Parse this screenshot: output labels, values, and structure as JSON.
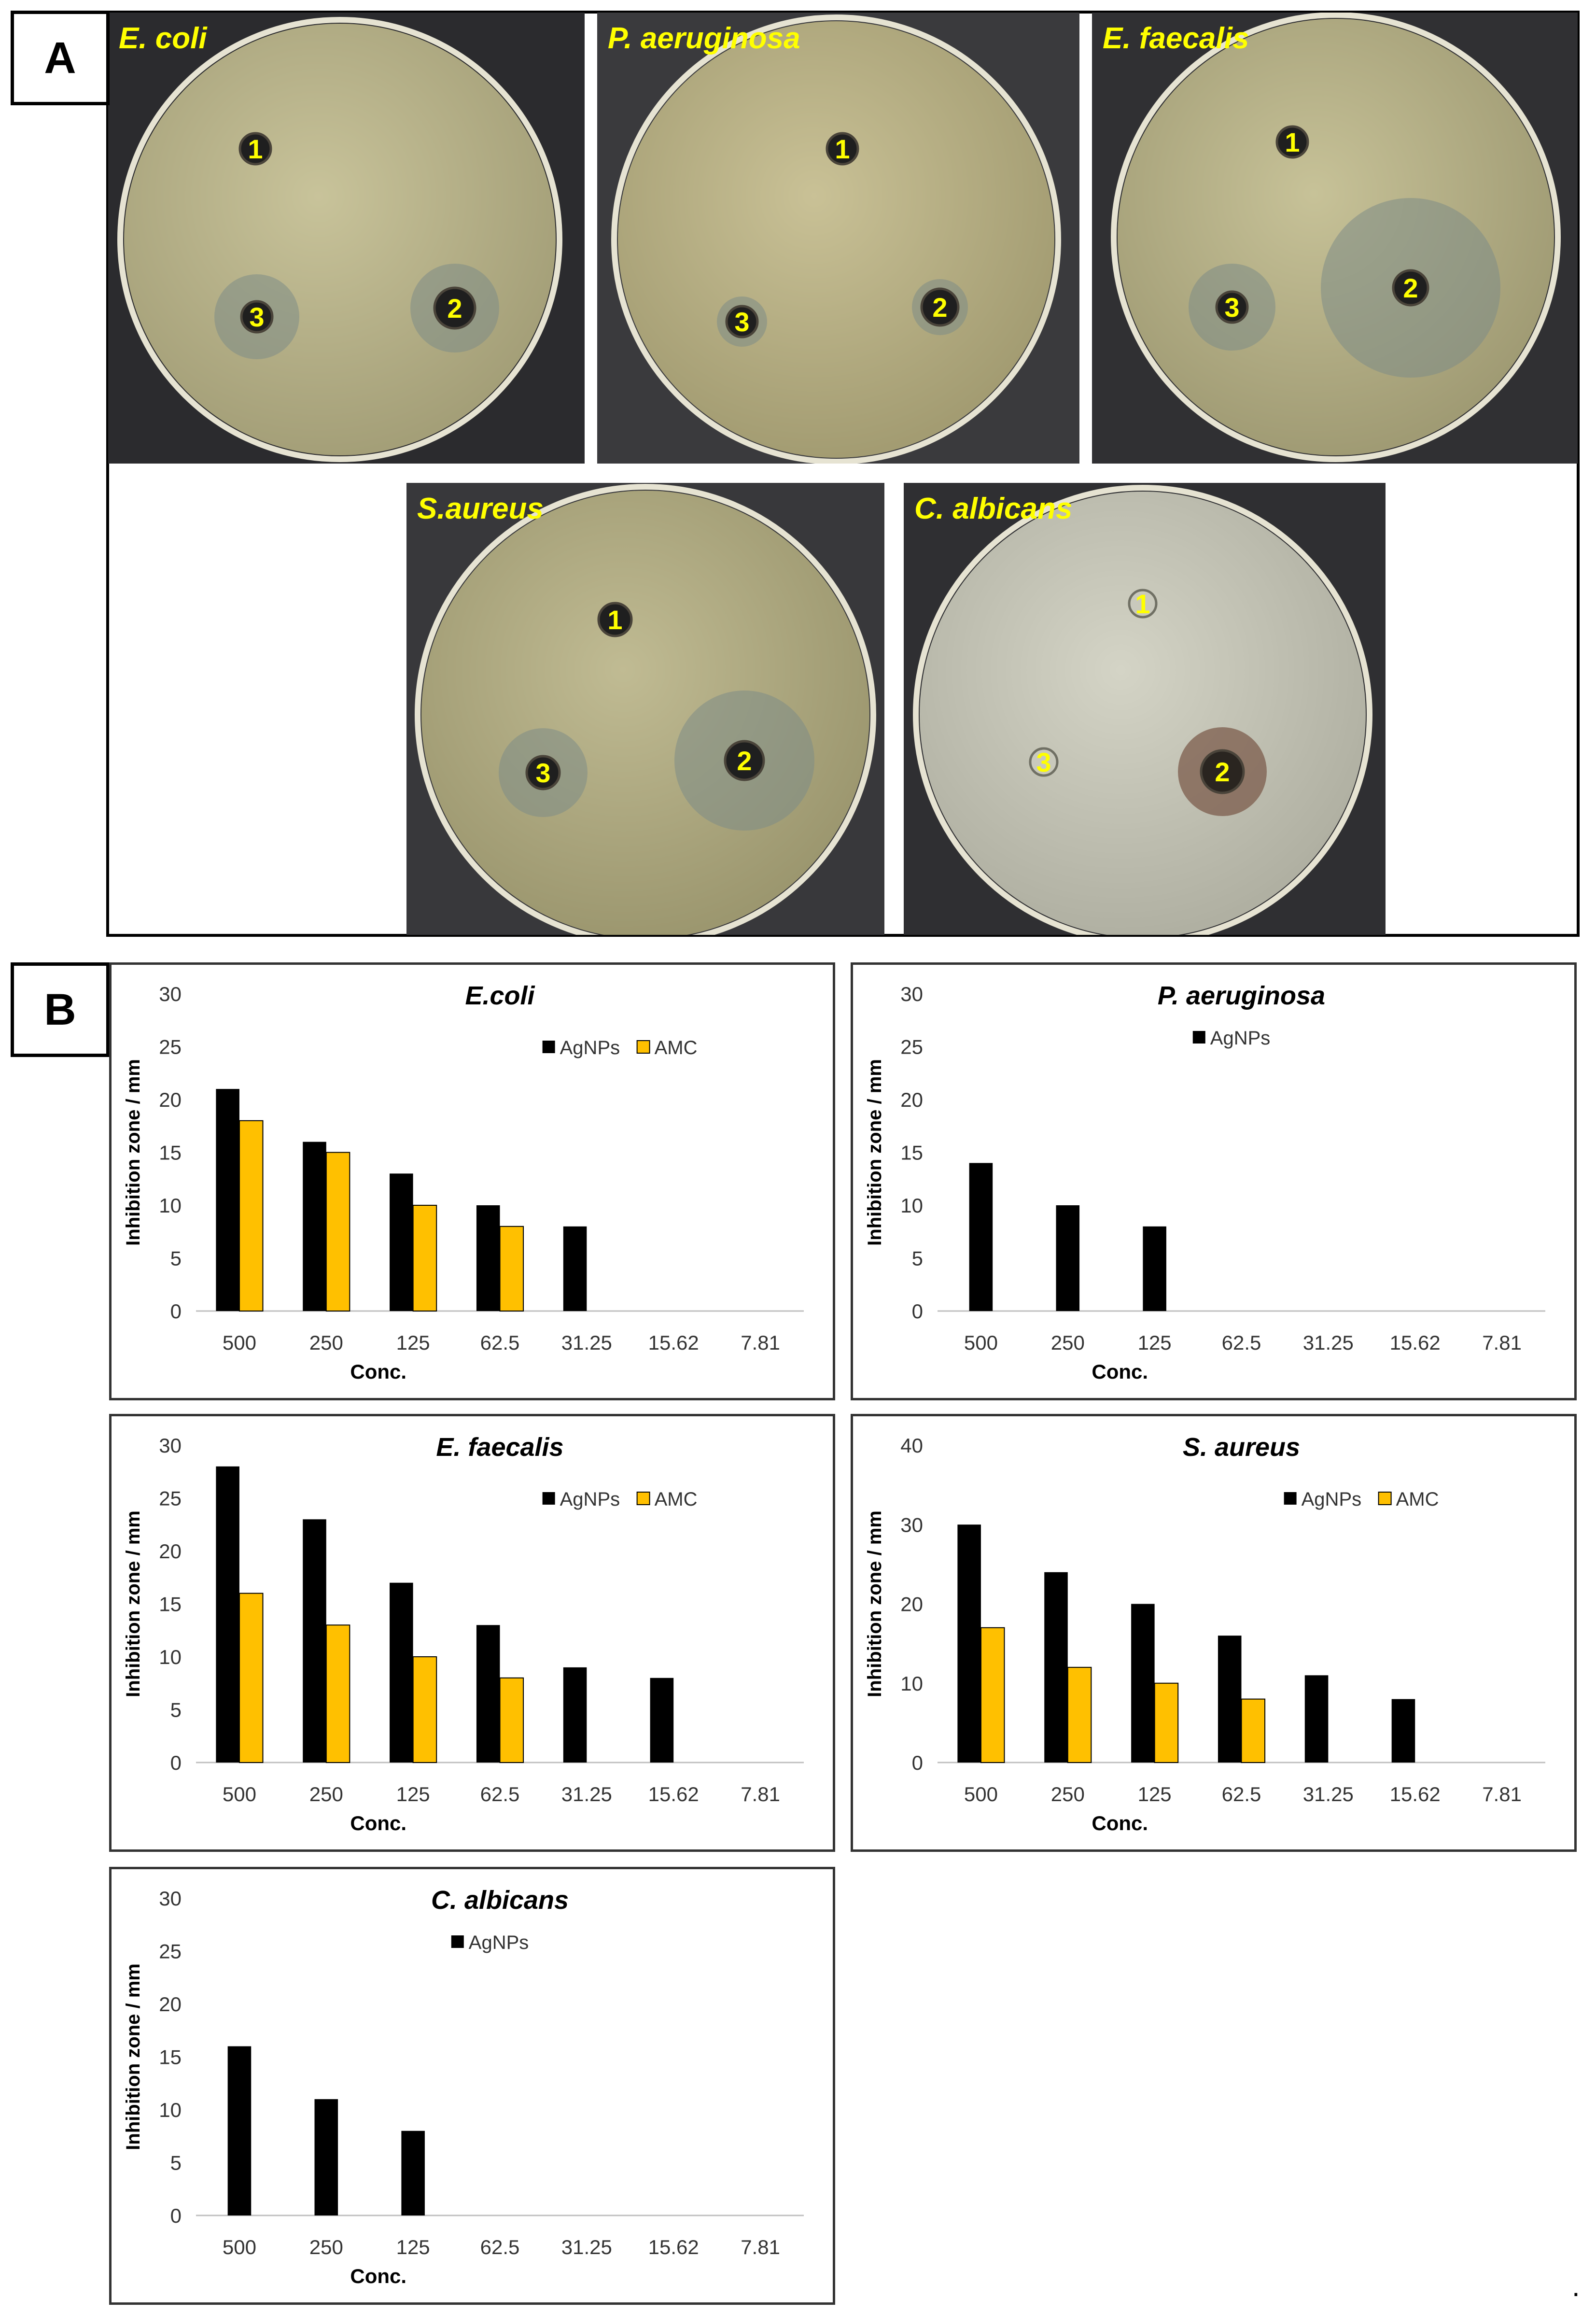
{
  "panel_a": {
    "label": "A",
    "plates": [
      {
        "organism": "E. coli",
        "well_labels": [
          "1",
          "2",
          "3"
        ],
        "background": "#2b2b2e",
        "agar": "#c8c39a",
        "agar_edge": "#a49f78"
      },
      {
        "organism": "P. aeruginosa",
        "well_labels": [
          "1",
          "2",
          "3"
        ],
        "background": "#3a3a3d",
        "agar": "#c9c196",
        "agar_edge": "#a39c72"
      },
      {
        "organism": "E. faecalis",
        "well_labels": [
          "1",
          "2",
          "3"
        ],
        "background": "#303033",
        "agar": "#c7c298",
        "agar_edge": "#a09b74"
      },
      {
        "organism": "S.aureus",
        "well_labels": [
          "1",
          "2",
          "3"
        ],
        "background": "#38383b",
        "agar": "#c0bb93",
        "agar_edge": "#9c976f"
      },
      {
        "organism": "C. albicans",
        "well_labels": [
          "1",
          "2",
          "3"
        ],
        "background": "#2f2f32",
        "agar": "#d4d4c6",
        "agar_edge": "#b0b0a2"
      }
    ]
  },
  "panel_b": {
    "label": "B"
  },
  "trailing_mark": ".",
  "chart_data": [
    {
      "type": "bar",
      "title": "E.coli",
      "xlabel": "Conc.",
      "ylabel": "Inhibition zone / mm",
      "categories": [
        "500",
        "250",
        "125",
        "62.5",
        "31.25",
        "15.62",
        "7.81"
      ],
      "ylim": [
        0,
        30
      ],
      "yticks": [
        0,
        5,
        10,
        15,
        20,
        25,
        30
      ],
      "legend_position": "top-right",
      "series": [
        {
          "name": "AgNPs",
          "color": "#000000",
          "values": [
            21,
            16,
            13,
            10,
            8,
            0,
            0
          ]
        },
        {
          "name": "AMC",
          "color": "#ffc000",
          "values": [
            18,
            15,
            10,
            8,
            0,
            0,
            0
          ]
        }
      ]
    },
    {
      "type": "bar",
      "title": "P. aeruginosa",
      "xlabel": "Conc.",
      "ylabel": "Inhibition zone / mm",
      "categories": [
        "500",
        "250",
        "125",
        "62.5",
        "31.25",
        "15.62",
        "7.81"
      ],
      "ylim": [
        0,
        30
      ],
      "yticks": [
        0,
        5,
        10,
        15,
        20,
        25,
        30
      ],
      "legend_position": "top-center",
      "series": [
        {
          "name": "AgNPs",
          "color": "#000000",
          "values": [
            14,
            10,
            8,
            0,
            0,
            0,
            0
          ]
        }
      ]
    },
    {
      "type": "bar",
      "title": "E. faecalis",
      "xlabel": "Conc.",
      "ylabel": "Inhibition zone / mm",
      "categories": [
        "500",
        "250",
        "125",
        "62.5",
        "31.25",
        "15.62",
        "7.81"
      ],
      "ylim": [
        0,
        30
      ],
      "yticks": [
        0,
        5,
        10,
        15,
        20,
        25,
        30
      ],
      "legend_position": "top-right",
      "series": [
        {
          "name": "AgNPs",
          "color": "#000000",
          "values": [
            28,
            23,
            17,
            13,
            9,
            8,
            0
          ]
        },
        {
          "name": "AMC",
          "color": "#ffc000",
          "values": [
            16,
            13,
            10,
            8,
            0,
            0,
            0
          ]
        }
      ]
    },
    {
      "type": "bar",
      "title": "S. aureus",
      "xlabel": "Conc.",
      "ylabel": "Inhibition zone / mm",
      "categories": [
        "500",
        "250",
        "125",
        "62.5",
        "31.25",
        "15.62",
        "7.81"
      ],
      "ylim": [
        0,
        40
      ],
      "yticks": [
        0,
        10,
        20,
        30,
        40
      ],
      "legend_position": "top-right",
      "series": [
        {
          "name": "AgNPs",
          "color": "#000000",
          "values": [
            30,
            24,
            20,
            16,
            11,
            8,
            0
          ]
        },
        {
          "name": "AMC",
          "color": "#ffc000",
          "values": [
            17,
            12,
            10,
            8,
            0,
            0,
            0
          ]
        }
      ]
    },
    {
      "type": "bar",
      "title": "C. albicans",
      "xlabel": "Conc.",
      "ylabel": "Inhibition zone / mm",
      "categories": [
        "500",
        "250",
        "125",
        "62.5",
        "31.25",
        "15.62",
        "7.81"
      ],
      "ylim": [
        0,
        30
      ],
      "yticks": [
        0,
        5,
        10,
        15,
        20,
        25,
        30
      ],
      "legend_position": "top-center",
      "series": [
        {
          "name": "AgNPs",
          "color": "#000000",
          "values": [
            16,
            11,
            8,
            0,
            0,
            0,
            0
          ]
        }
      ]
    }
  ]
}
